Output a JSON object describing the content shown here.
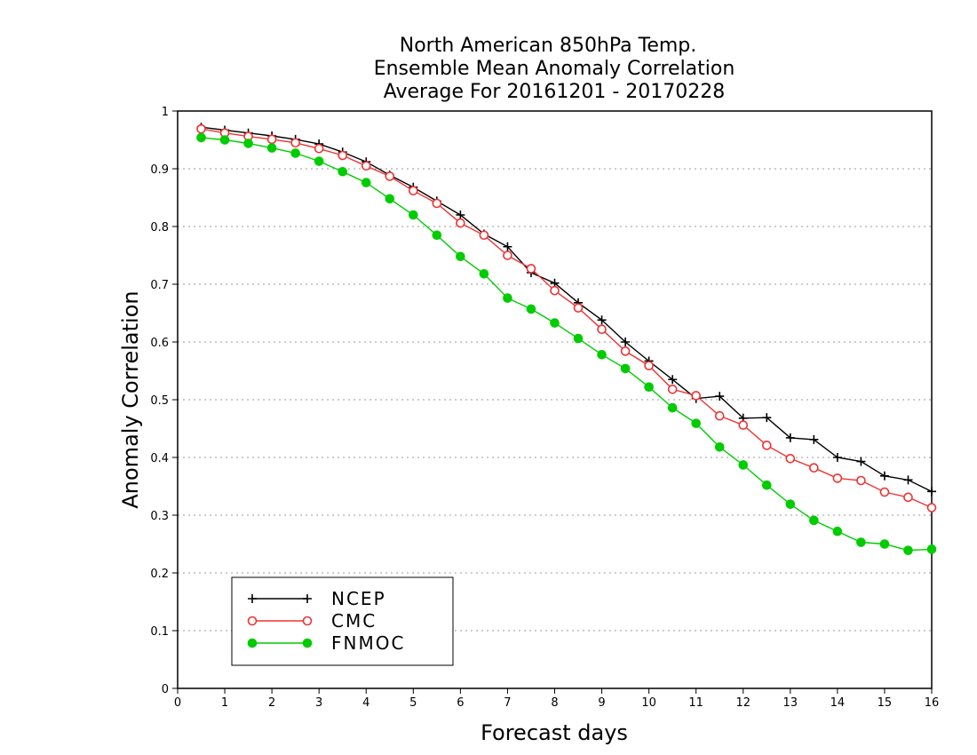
{
  "chart_data": {
    "type": "line",
    "title": [
      "North American 850hPa Temp.",
      "Ensemble Mean Anomaly Correlation",
      "Average For 20161201 - 20170228"
    ],
    "xlabel": "Forecast days",
    "ylabel": "Anomaly Correlation",
    "xlim": [
      0,
      16
    ],
    "ylim": [
      0,
      1
    ],
    "xticks": [
      "0",
      "1",
      "2",
      "3",
      "4",
      "5",
      "6",
      "7",
      "8",
      "9",
      "10",
      "11",
      "12",
      "13",
      "14",
      "15",
      "16"
    ],
    "yticks": [
      "0",
      "0.1",
      "0.2",
      "0.3",
      "0.4",
      "0.5",
      "0.6",
      "0.7",
      "0.8",
      "0.9",
      "1"
    ],
    "grid": "horizontal-dotted",
    "legend_position": "bottom-left",
    "x": [
      0.5,
      1,
      1.5,
      2,
      2.5,
      3,
      3.5,
      4,
      4.5,
      5,
      5.5,
      6,
      6.5,
      7,
      7.5,
      8,
      8.5,
      9,
      9.5,
      10,
      10.5,
      11,
      11.5,
      12,
      12.5,
      13,
      13.5,
      14,
      14.5,
      15,
      15.5,
      16
    ],
    "series": [
      {
        "name": "NCEP",
        "color": "#000000",
        "marker": "plus",
        "values": [
          0.972,
          0.967,
          0.962,
          0.957,
          0.951,
          0.943,
          0.929,
          0.912,
          0.889,
          0.868,
          0.844,
          0.82,
          0.787,
          0.765,
          0.72,
          0.702,
          0.668,
          0.638,
          0.6,
          0.567,
          0.535,
          0.502,
          0.506,
          0.468,
          0.469,
          0.434,
          0.431,
          0.4,
          0.393,
          0.368,
          0.361,
          0.341
        ]
      },
      {
        "name": "CMC",
        "color": "#ee3333",
        "marker": "open-circle",
        "values": [
          0.969,
          0.962,
          0.956,
          0.951,
          0.945,
          0.935,
          0.923,
          0.905,
          0.887,
          0.862,
          0.84,
          0.806,
          0.785,
          0.75,
          0.727,
          0.689,
          0.659,
          0.622,
          0.584,
          0.559,
          0.518,
          0.507,
          0.472,
          0.456,
          0.421,
          0.398,
          0.382,
          0.364,
          0.36,
          0.34,
          0.331,
          0.313
        ]
      },
      {
        "name": "FNMOC",
        "color": "#00cc00",
        "marker": "filled-circle",
        "values": [
          0.954,
          0.95,
          0.944,
          0.936,
          0.927,
          0.913,
          0.895,
          0.876,
          0.848,
          0.82,
          0.785,
          0.748,
          0.718,
          0.676,
          0.657,
          0.633,
          0.606,
          0.578,
          0.554,
          0.522,
          0.486,
          0.459,
          0.418,
          0.387,
          0.352,
          0.319,
          0.291,
          0.272,
          0.253,
          0.25,
          0.239,
          0.241
        ]
      }
    ]
  }
}
